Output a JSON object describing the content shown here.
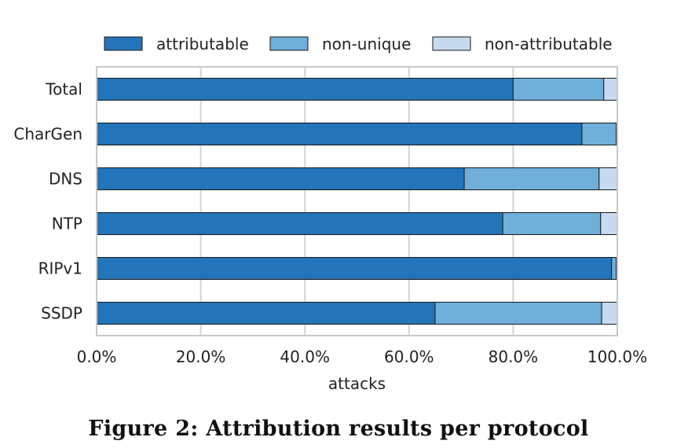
{
  "chart_data": {
    "type": "bar",
    "orientation": "horizontal",
    "stacked": true,
    "categories": [
      "Total",
      "CharGen",
      "DNS",
      "NTP",
      "RIPv1",
      "SSDP"
    ],
    "series": [
      {
        "name": "attributable",
        "color": "#2474b9",
        "values": [
          80.0,
          93.2,
          70.6,
          78.0,
          98.9,
          65.0
        ]
      },
      {
        "name": "non-unique",
        "color": "#6fafd9",
        "values": [
          17.4,
          6.6,
          25.9,
          18.8,
          0.9,
          32.0
        ]
      },
      {
        "name": "non-attributable",
        "color": "#c6dbef",
        "values": [
          2.6,
          0.2,
          3.5,
          3.2,
          0.2,
          3.0
        ]
      }
    ],
    "xlim": [
      0,
      100
    ],
    "xticks": [
      0,
      20,
      40,
      60,
      80,
      100
    ],
    "xtick_labels": [
      "0.0%",
      "20.0%",
      "40.0%",
      "60.0%",
      "80.0%",
      "100.0%"
    ],
    "xlabel": "attacks",
    "ylabel": "",
    "grid": "vertical",
    "legend_position": "top"
  },
  "caption": "Figure 2: Attribution results per protocol"
}
